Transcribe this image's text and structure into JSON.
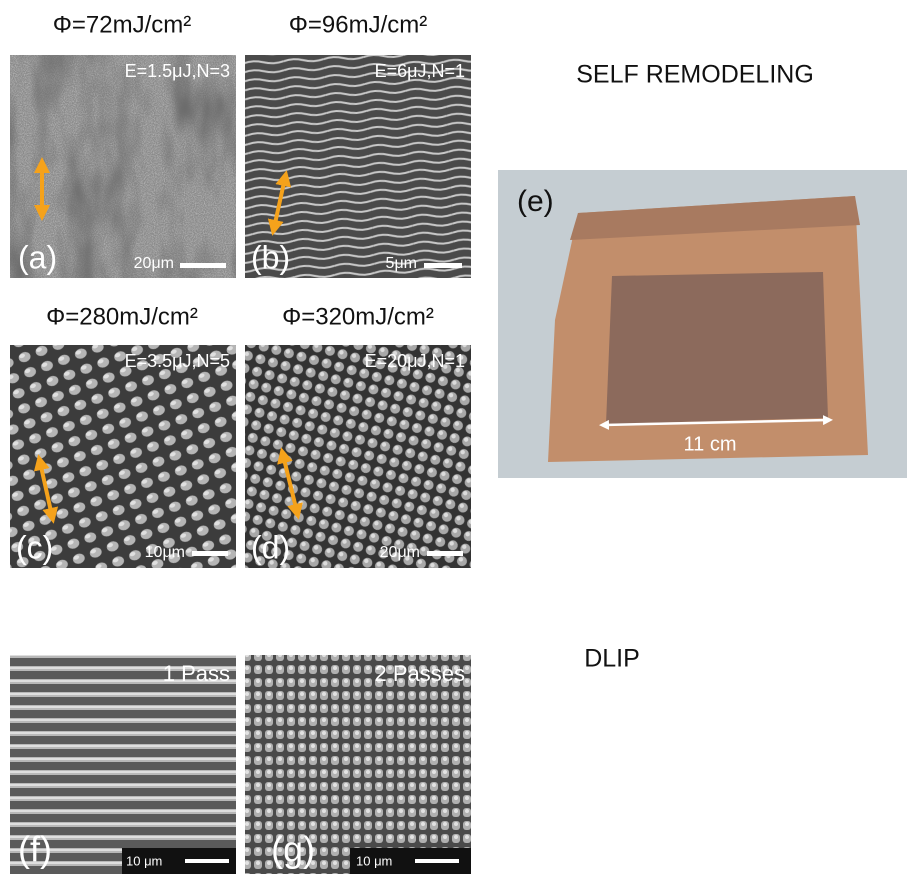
{
  "sections": {
    "self_remodeling": "SELF REMODELING",
    "dlip": "DLIP"
  },
  "fluence_labels": [
    "Φ=72mJ/cm²",
    "Φ=96mJ/cm²",
    "Φ=280mJ/cm²",
    "Φ=320mJ/cm²"
  ],
  "panels": [
    {
      "label": "(a)",
      "annotation": "E=1.5μJ,N=3",
      "scale": "20μm"
    },
    {
      "label": "(b)",
      "annotation": "E=6μJ,N=1",
      "scale": "5μm"
    },
    {
      "label": "(c)",
      "annotation": "E=3.5μJ,N=5",
      "scale": "10μm"
    },
    {
      "label": "(d)",
      "annotation": "E=20μJ,N=1",
      "scale": "20μm"
    },
    {
      "label": "(f)",
      "annotation": "1 Pass",
      "scale": "10 μm"
    },
    {
      "label": "(g)",
      "annotation": "2 Passes",
      "scale": "10 μm"
    }
  ],
  "photo": {
    "label": "(e)",
    "dimension": "11 cm"
  }
}
